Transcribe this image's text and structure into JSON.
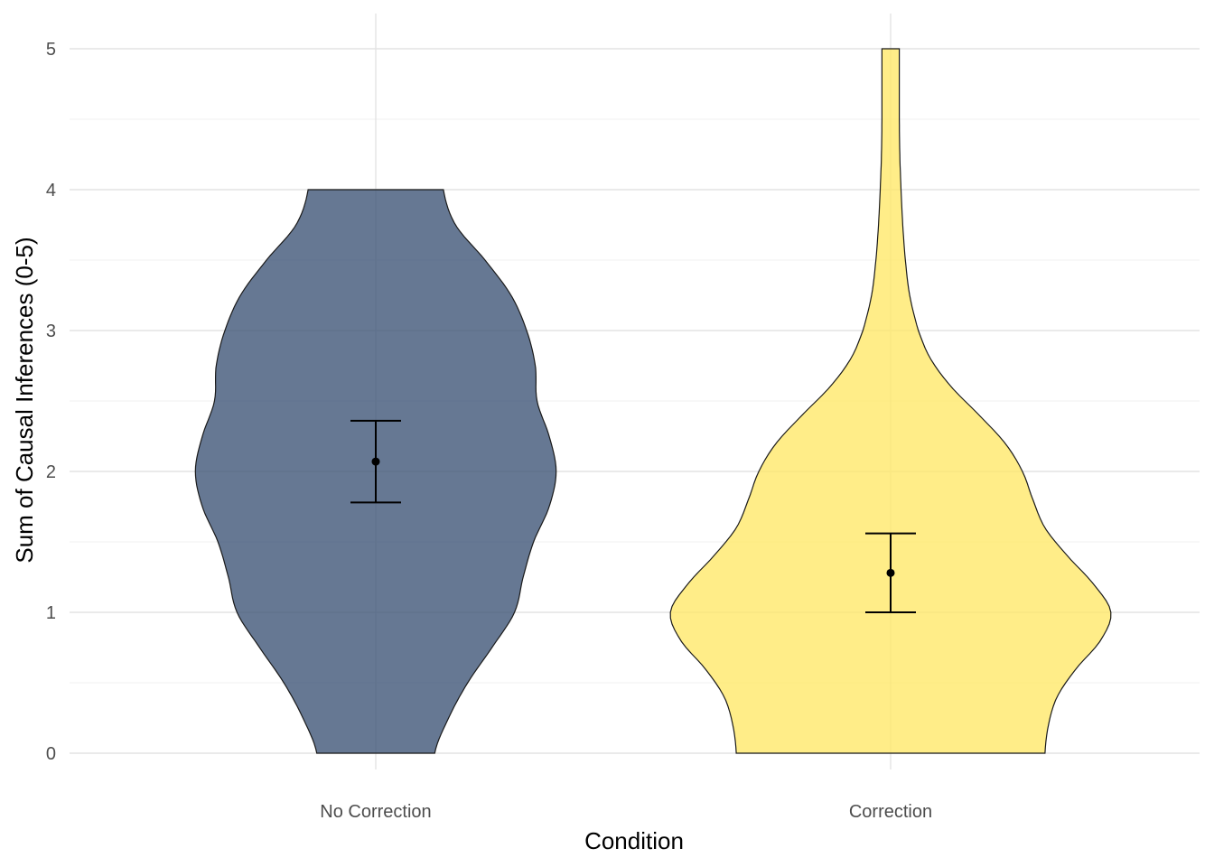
{
  "chart_data": {
    "type": "violin",
    "xlabel": "Condition",
    "ylabel": "Sum of Causal Inferences (0-5)",
    "ylim": [
      0,
      5
    ],
    "yticks": [
      0,
      1,
      2,
      3,
      4,
      5
    ],
    "grid": true,
    "categories": [
      "No Correction",
      "Correction"
    ],
    "series": [
      {
        "category": "No Correction",
        "color": "#3b5275",
        "opacity": 0.78,
        "mean": 2.07,
        "ci_low": 1.78,
        "ci_high": 2.36,
        "density_profile": [
          [
            0.0,
            0.34
          ],
          [
            0.25,
            0.42
          ],
          [
            0.5,
            0.53
          ],
          [
            0.75,
            0.67
          ],
          [
            1.0,
            0.8
          ],
          [
            1.25,
            0.85
          ],
          [
            1.5,
            0.91
          ],
          [
            1.75,
            1.0
          ],
          [
            2.0,
            1.04
          ],
          [
            2.25,
            1.0
          ],
          [
            2.5,
            0.93
          ],
          [
            2.75,
            0.92
          ],
          [
            3.0,
            0.87
          ],
          [
            3.25,
            0.78
          ],
          [
            3.5,
            0.63
          ],
          [
            3.75,
            0.46
          ],
          [
            4.0,
            0.39
          ]
        ]
      },
      {
        "category": "Correction",
        "color": "#ffe866",
        "opacity": 0.78,
        "mean": 1.28,
        "ci_low": 1.0,
        "ci_high": 1.56,
        "density_profile": [
          [
            0.0,
            0.89
          ],
          [
            0.2,
            0.91
          ],
          [
            0.4,
            0.96
          ],
          [
            0.6,
            1.07
          ],
          [
            0.8,
            1.21
          ],
          [
            1.0,
            1.27
          ],
          [
            1.2,
            1.17
          ],
          [
            1.4,
            1.02
          ],
          [
            1.6,
            0.89
          ],
          [
            1.8,
            0.82
          ],
          [
            2.0,
            0.76
          ],
          [
            2.2,
            0.66
          ],
          [
            2.4,
            0.51
          ],
          [
            2.6,
            0.35
          ],
          [
            2.8,
            0.23
          ],
          [
            3.0,
            0.16
          ],
          [
            3.25,
            0.11
          ],
          [
            3.5,
            0.085
          ],
          [
            3.75,
            0.07
          ],
          [
            4.0,
            0.06
          ],
          [
            4.25,
            0.053
          ],
          [
            4.5,
            0.05
          ],
          [
            4.75,
            0.05
          ],
          [
            5.0,
            0.05
          ]
        ]
      }
    ]
  }
}
